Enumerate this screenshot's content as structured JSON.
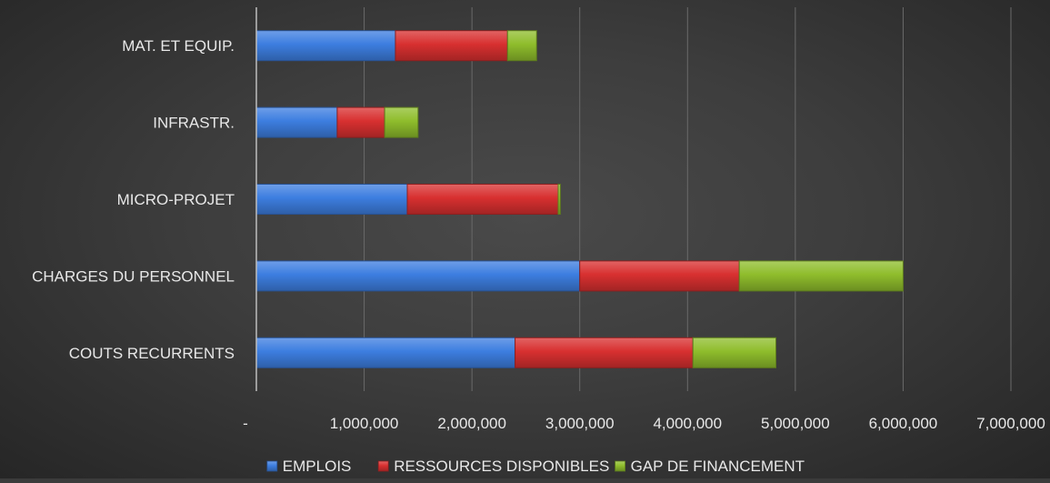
{
  "chart_data": {
    "type": "bar",
    "orientation": "horizontal",
    "stacked": true,
    "title": "",
    "xlabel": "",
    "ylabel": "",
    "categories": [
      "COUTS RECURRENTS",
      "CHARGES DU PERSONNEL",
      "MICRO-PROJET",
      "INFRASTR.",
      "MAT. ET EQUIP."
    ],
    "series": [
      {
        "name": "EMPLOIS",
        "color": "#3d7ee0",
        "values": [
          2400000,
          3000000,
          1400000,
          750000,
          1290000
        ]
      },
      {
        "name": "RESSOURCES DISPONIBLES",
        "color": "#d83030",
        "values": [
          1650000,
          1480000,
          1400000,
          440000,
          1040000
        ]
      },
      {
        "name": "GAP DE FINANCEMENT",
        "color": "#8fbd2c",
        "values": [
          770000,
          1520000,
          20000,
          310000,
          270000
        ]
      }
    ],
    "xlim": [
      0,
      7000000
    ],
    "xticks": [
      0,
      1000000,
      2000000,
      3000000,
      4000000,
      5000000,
      6000000,
      7000000
    ],
    "xtick_labels": [
      "-",
      "1,000,000",
      "2,000,000",
      "3,000,000",
      "4,000,000",
      "5,000,000",
      "6,000,000",
      "7,000,000"
    ],
    "grid": "vertical",
    "legend_position": "bottom"
  }
}
